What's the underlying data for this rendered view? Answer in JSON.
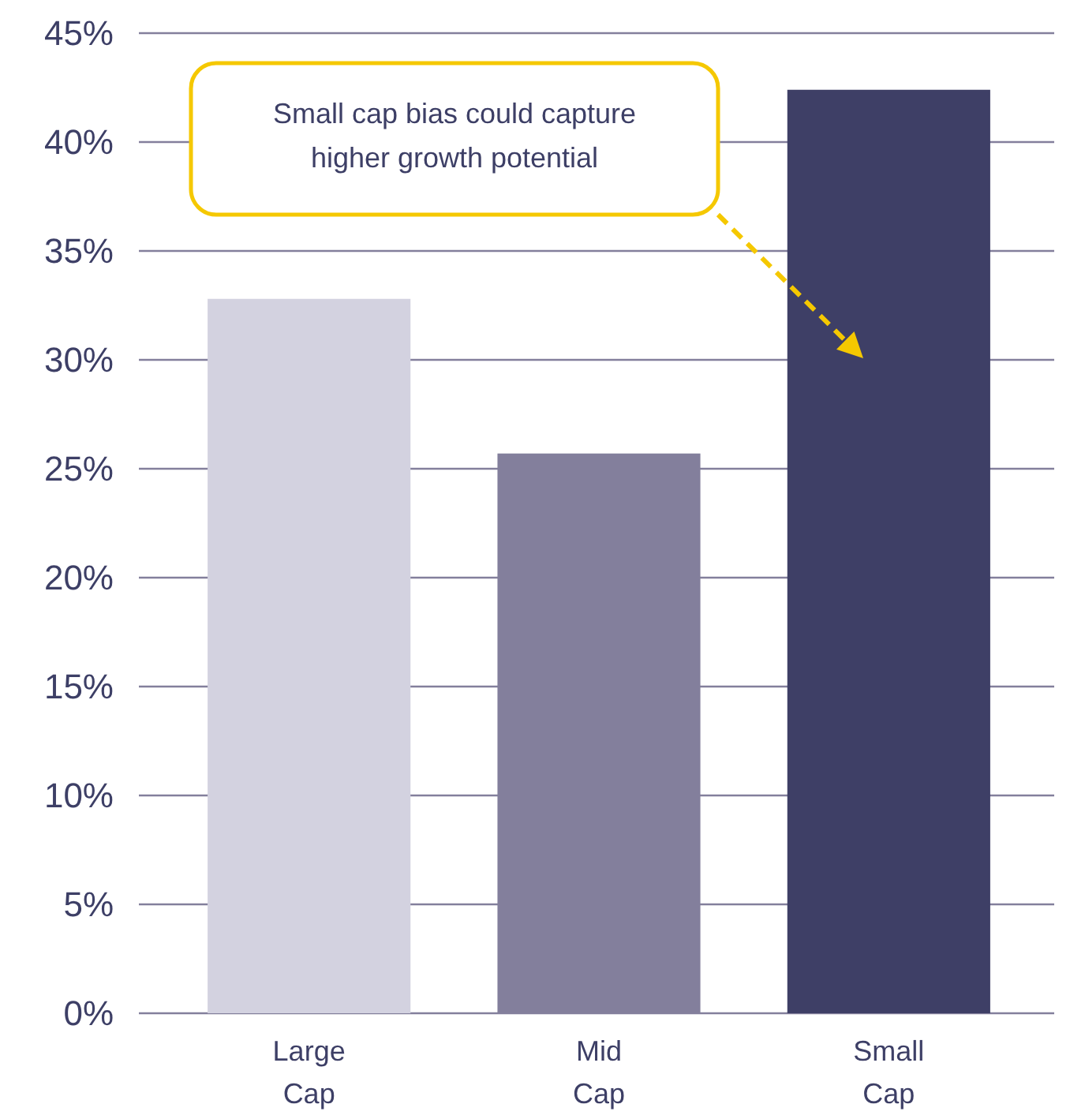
{
  "chart_data": {
    "type": "bar",
    "categories": [
      "Large Cap",
      "Mid Cap",
      "Small Cap"
    ],
    "values": [
      32.8,
      25.7,
      42.4
    ],
    "colors": [
      "#d3d2e0",
      "#837f9c",
      "#3e3f66"
    ],
    "ylim": [
      0,
      45
    ],
    "yticks": [
      {
        "value": 0,
        "label": "0%"
      },
      {
        "value": 5,
        "label": "5%"
      },
      {
        "value": 10,
        "label": "10%"
      },
      {
        "value": 15,
        "label": "15%"
      },
      {
        "value": 20,
        "label": "20%"
      },
      {
        "value": 25,
        "label": "25%"
      },
      {
        "value": 30,
        "label": "30%"
      },
      {
        "value": 35,
        "label": "35%"
      },
      {
        "value": 40,
        "label": "40%"
      },
      {
        "value": 45,
        "label": "45%"
      }
    ],
    "grid": "y",
    "annotations": [
      "Small cap bias could capture higher growth potential"
    ]
  }
}
